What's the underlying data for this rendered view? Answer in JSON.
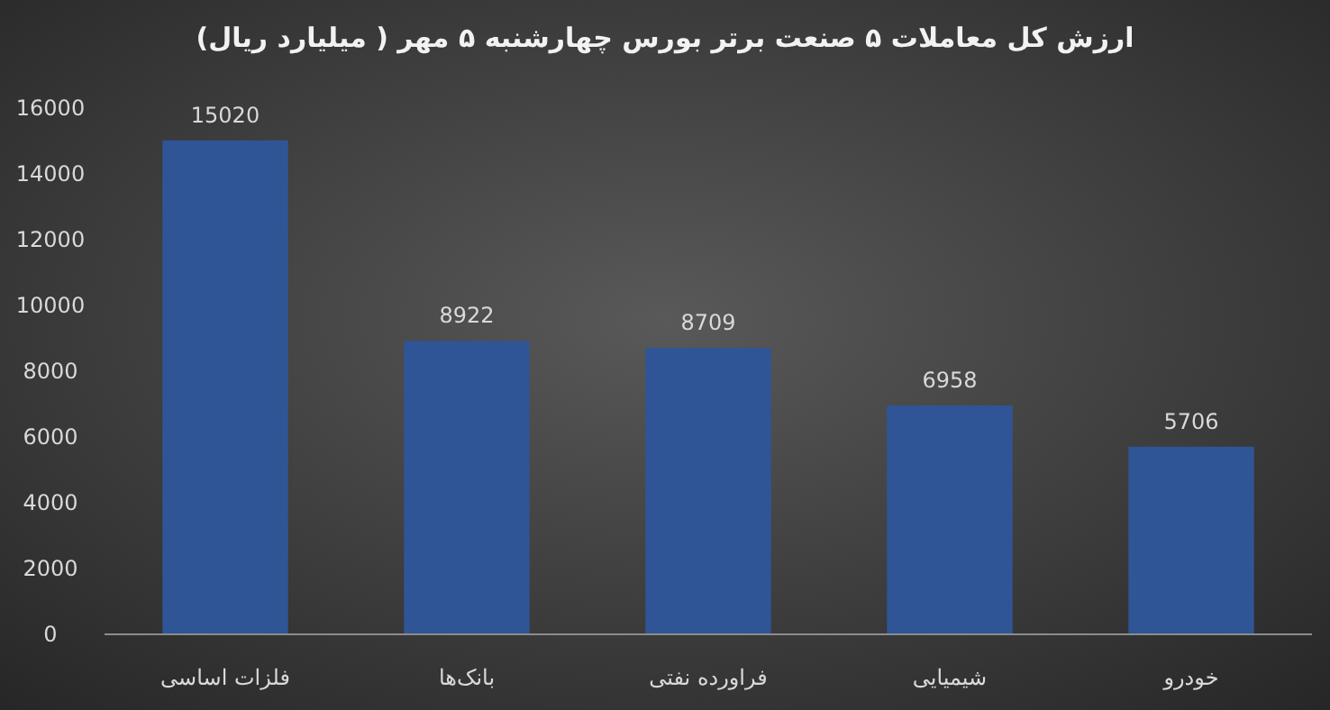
{
  "chart_data": {
    "type": "bar",
    "title": "ارزش کل معاملات ۵ صنعت برتر بورس چهارشنبه ۵ مهر ( میلیارد ریال)",
    "categories": [
      "فلزات اساسی",
      "بانک‌ها",
      "فراورده نفتی",
      "شیمیایی",
      "خودرو"
    ],
    "values": [
      15020,
      8922,
      8709,
      6958,
      5706
    ],
    "color": "#2f5597",
    "ylim": [
      0,
      16000
    ],
    "yticks": [
      0,
      2000,
      4000,
      6000,
      8000,
      10000,
      12000,
      14000,
      16000
    ],
    "data_labels": true
  }
}
